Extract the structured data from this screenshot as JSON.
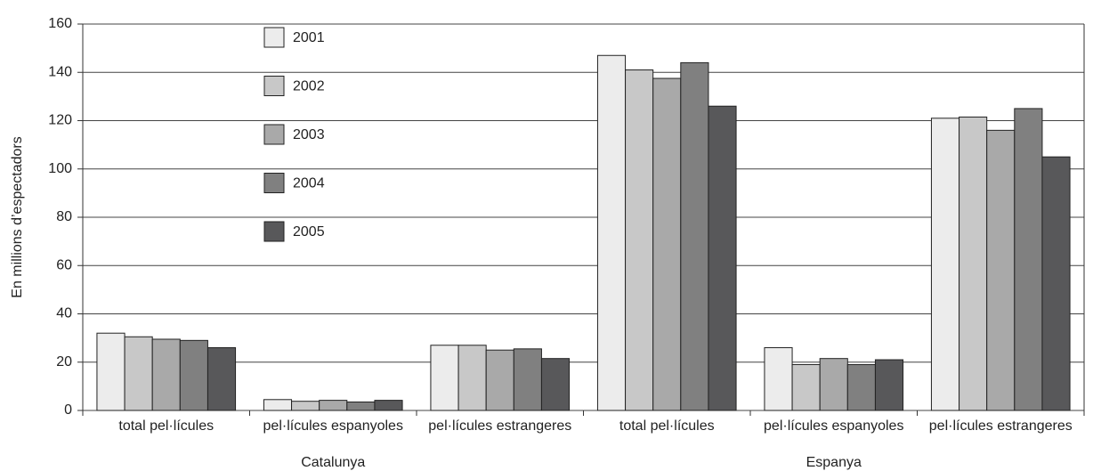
{
  "chart_data": {
    "type": "bar",
    "y_label": "En millions d’espectadors",
    "categories": [
      "total pel·lícules",
      "pel·lícules espanyoles",
      "pel·lícules estrangeres",
      "total pel·lícules",
      "pel·lícules espanyoles",
      "pel·lícules estrangeres"
    ],
    "groups": [
      "Catalunya",
      "Espanya"
    ],
    "series": [
      {
        "name": "2001",
        "color": "#ececec",
        "values": [
          32,
          4.5,
          27,
          147,
          26,
          121
        ]
      },
      {
        "name": "2002",
        "color": "#c8c8c8",
        "values": [
          30.5,
          3.8,
          27,
          141,
          19,
          121.5
        ]
      },
      {
        "name": "2003",
        "color": "#a9a9a9",
        "values": [
          29.5,
          4.2,
          25,
          137.5,
          21.5,
          116
        ]
      },
      {
        "name": "2004",
        "color": "#808080",
        "values": [
          29,
          3.5,
          25.5,
          144,
          19,
          125
        ]
      },
      {
        "name": "2005",
        "color": "#58585a",
        "values": [
          26,
          4.2,
          21.5,
          126,
          21,
          105
        ]
      }
    ],
    "ylim": [
      0,
      160
    ],
    "yticks": [
      0,
      20,
      40,
      60,
      80,
      100,
      120,
      140,
      160
    ],
    "grid": true,
    "legend": "upper left"
  }
}
